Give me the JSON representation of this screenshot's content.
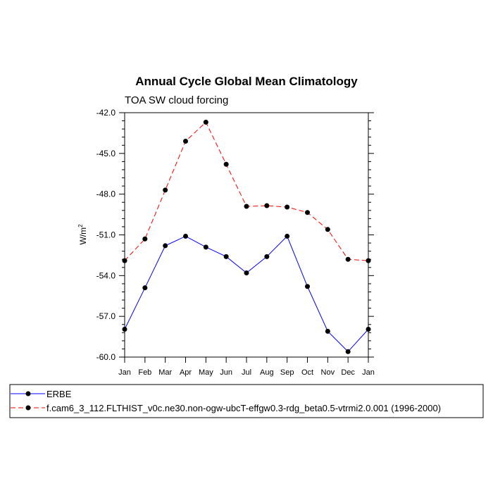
{
  "chart_data": {
    "type": "line",
    "title": "Annual Cycle Global Mean Climatology",
    "subtitle": "TOA SW cloud forcing",
    "ylabel": "W/m",
    "ylabel_sup": "2",
    "xlabel": "",
    "categories": [
      "Jan",
      "Feb",
      "Mar",
      "Apr",
      "May",
      "Jun",
      "Jul",
      "Aug",
      "Sep",
      "Oct",
      "Nov",
      "Dec",
      "Jan"
    ],
    "ylim": [
      -60.0,
      -42.0
    ],
    "yticks": [
      "-42.0",
      "-45.0",
      "-48.0",
      "-51.0",
      "-54.0",
      "-57.0",
      "-60.0"
    ],
    "ytick_values": [
      -42.0,
      -45.0,
      -48.0,
      -51.0,
      -54.0,
      -57.0,
      -60.0
    ],
    "series": [
      {
        "name": "ERBE",
        "color": "#0000ff",
        "dashed": false,
        "values": [
          -57.95,
          -54.9,
          -51.8,
          -51.1,
          -51.9,
          -52.6,
          -53.8,
          -52.6,
          -51.1,
          -54.8,
          -58.1,
          -59.6,
          -57.95
        ]
      },
      {
        "name": "f.cam6_3_112.FLTHIST_v0c.ne30.non-ogw-ubcT-effgw0.3-rdg_beta0.5-vtrmi2.0.001 (1996-2000)",
        "color": "#ff0000",
        "dashed": true,
        "values": [
          -52.9,
          -51.3,
          -47.7,
          -44.1,
          -42.7,
          -45.8,
          -48.9,
          -48.85,
          -48.95,
          -49.35,
          -50.6,
          -52.8,
          -52.9
        ]
      }
    ]
  }
}
